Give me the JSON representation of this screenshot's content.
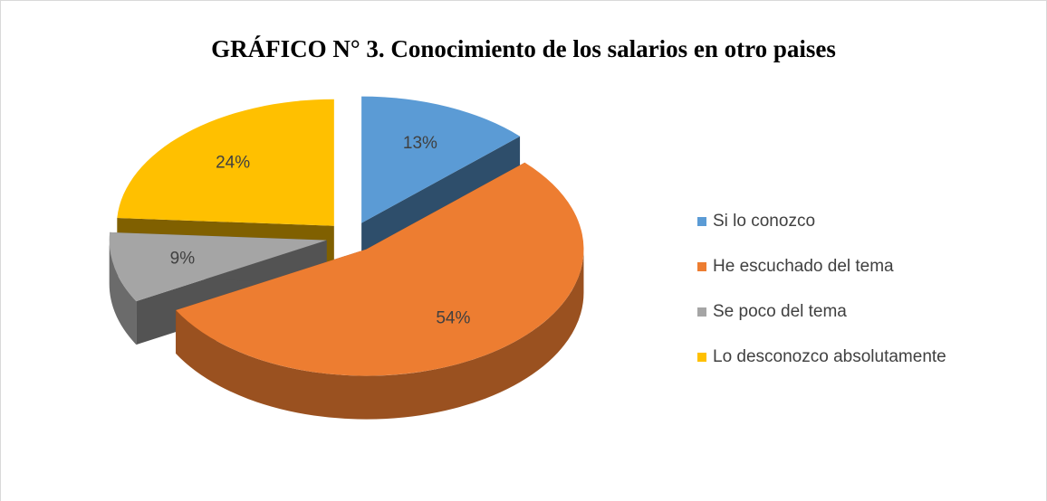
{
  "chart_data": {
    "type": "pie",
    "title": "GRÁFICO N° 3. Conocimiento de los salarios en otro paises",
    "categories": [
      "Si lo conozco",
      "He escuchado del tema",
      "Se poco del tema",
      "Lo desconozco absolutamente"
    ],
    "values": [
      13,
      54,
      9,
      24
    ],
    "value_labels": [
      "13%",
      "54%",
      "9%",
      "24%"
    ],
    "colors": [
      "#5b9bd5",
      "#ed7d31",
      "#a5a5a5",
      "#ffc000"
    ],
    "legend": "right"
  }
}
